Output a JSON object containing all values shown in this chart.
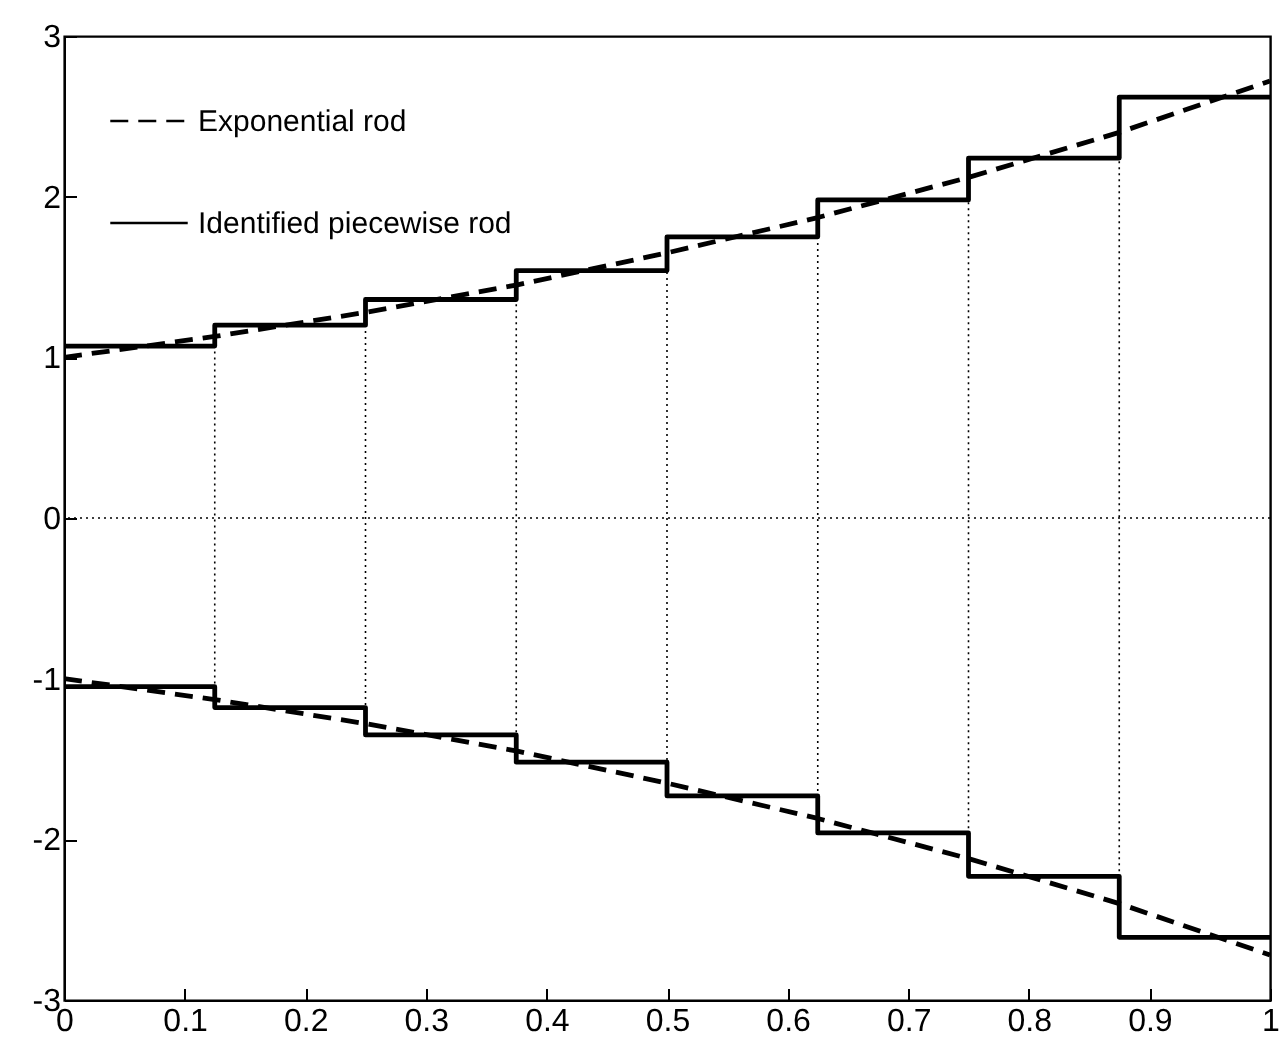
{
  "chart_data": {
    "type": "step",
    "xlim": [
      0,
      1
    ],
    "ylim": [
      -3,
      3
    ],
    "xticks": [
      0,
      0.1,
      0.2,
      0.3,
      0.4,
      0.5,
      0.6,
      0.7,
      0.8,
      0.9,
      1
    ],
    "yticks": [
      -3,
      -2,
      -1,
      0,
      1,
      2,
      3
    ],
    "grid": false,
    "legend": "top left",
    "series": [
      {
        "name": "Exponential rod",
        "type": "line",
        "line_style": "dashed",
        "color": "#000000",
        "x": [
          0,
          0.125,
          0.25,
          0.375,
          0.5,
          0.625,
          0.75,
          0.875,
          1
        ],
        "values": [
          1,
          1.13,
          1.28,
          1.45,
          1.65,
          1.87,
          2.12,
          2.4,
          2.72
        ]
      },
      {
        "type": "line",
        "line_style": "dashed",
        "color": "#000000",
        "x": [
          0,
          0.125,
          0.25,
          0.375,
          0.5,
          0.625,
          0.75,
          0.875,
          1
        ],
        "values": [
          -1,
          -1.13,
          -1.28,
          -1.45,
          -1.65,
          -1.87,
          -2.12,
          -2.4,
          -2.72
        ]
      },
      {
        "name": "Identified piecewise rod",
        "type": "step",
        "line_style": "solid",
        "color": "#000000",
        "x": [
          0,
          0.125,
          0.25,
          0.375,
          0.5,
          0.625,
          0.75,
          0.875,
          1
        ],
        "values": [
          1.07,
          1.2,
          1.36,
          1.54,
          1.75,
          1.98,
          2.24,
          2.62,
          2.62
        ]
      },
      {
        "type": "step",
        "line_style": "solid",
        "color": "#000000",
        "x": [
          0,
          0.125,
          0.25,
          0.375,
          0.5,
          0.625,
          0.75,
          0.875,
          1
        ],
        "values": [
          -1.05,
          -1.18,
          -1.35,
          -1.52,
          -1.73,
          -1.96,
          -2.23,
          -2.61,
          -2.61
        ]
      }
    ],
    "ref_lines": [
      {
        "axis": "y",
        "value": 0,
        "line_style": "dotted",
        "color": "#000000"
      },
      {
        "axis": "x",
        "value": 0.125,
        "line_style": "dotted",
        "color": "#000000"
      },
      {
        "axis": "x",
        "value": 0.25,
        "line_style": "dotted",
        "color": "#000000"
      },
      {
        "axis": "x",
        "value": 0.375,
        "line_style": "dotted",
        "color": "#000000"
      },
      {
        "axis": "x",
        "value": 0.5,
        "line_style": "dotted",
        "color": "#000000"
      },
      {
        "axis": "x",
        "value": 0.625,
        "line_style": "dotted",
        "color": "#000000"
      },
      {
        "axis": "x",
        "value": 0.75,
        "line_style": "dotted",
        "color": "#000000"
      },
      {
        "axis": "x",
        "value": 0.875,
        "line_style": "dotted",
        "color": "#000000"
      }
    ]
  }
}
